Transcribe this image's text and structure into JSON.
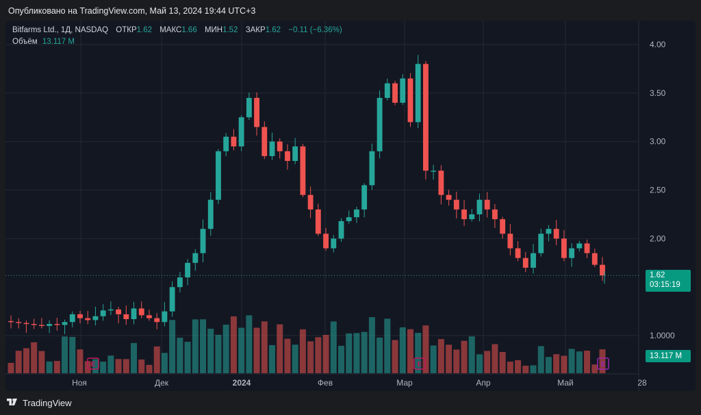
{
  "header": {
    "published_text": "Опубликовано на TradingView.com, Май 13, 2024 19:44 UTC+3"
  },
  "legend": {
    "symbol": "Bitfarms Ltd., 1Д, NASDAQ",
    "open_label": "ОТКР",
    "open": "1.62",
    "high_label": "МАКС",
    "high": "1.66",
    "low_label": "МИН",
    "low": "1.52",
    "close_label": "ЗАКР",
    "close": "1.62",
    "change": "−0.11 (−6.36%)",
    "volume_label": "Объём",
    "volume": "13.117 M"
  },
  "price_scale": {
    "ticks": [
      "4.00",
      "3.50",
      "3.00",
      "2.50",
      "2.00",
      "1.0000"
    ]
  },
  "time_scale": {
    "ticks": [
      "Ноя",
      "Дек",
      "2024",
      "Фев",
      "Мар",
      "Апр",
      "Май",
      "28"
    ]
  },
  "last_price": {
    "price": "1.62",
    "countdown": "03:15:19"
  },
  "volume_tag": "13.117 M",
  "earnings_markers": [
    "E",
    "E",
    "E"
  ],
  "colors": {
    "up": "#26a69a",
    "down": "#ef5350",
    "bg": "#131722",
    "grid": "#242832",
    "earnings": "#c2185b",
    "earnings_next": "#9c27b0"
  },
  "footer": {
    "brand": "TradingView"
  },
  "chart_data": {
    "type": "candlestick",
    "symbol": "BITF",
    "last_close": 1.62,
    "price_range": [
      1.0,
      4.2
    ],
    "closes_estimate": [
      1.14,
      1.13,
      1.12,
      1.11,
      1.1,
      1.12,
      1.11,
      1.14,
      1.22,
      1.18,
      1.16,
      1.2,
      1.26,
      1.27,
      1.22,
      1.17,
      1.28,
      1.21,
      1.18,
      1.14,
      1.25,
      1.5,
      1.6,
      1.75,
      1.85,
      2.1,
      2.4,
      2.9,
      3.05,
      2.95,
      3.25,
      3.45,
      3.15,
      2.85,
      3.0,
      2.9,
      2.8,
      2.95,
      2.45,
      2.3,
      2.05,
      1.9,
      2.0,
      2.18,
      2.22,
      2.3,
      2.55,
      2.9,
      3.45,
      3.6,
      3.4,
      3.65,
      3.2,
      3.8,
      2.7,
      2.7,
      2.45,
      2.4,
      2.3,
      2.2,
      2.25,
      2.4,
      2.3,
      2.2,
      2.05,
      1.9,
      1.8,
      1.7,
      1.85,
      2.05,
      2.1,
      2.0,
      1.8,
      1.9,
      1.95,
      1.85,
      1.73,
      1.62
    ]
  }
}
